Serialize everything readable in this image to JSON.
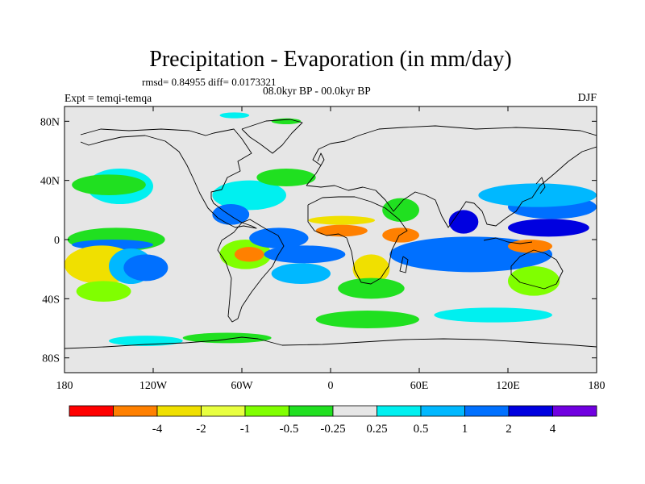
{
  "chart_data": {
    "type": "heatmap",
    "title": "Precipitation - Evaporation (in mm/day)",
    "stats": "rmsd= 0.84955 diff= 0.0173321",
    "period": "08.0kyr BP - 00.0kyr BP",
    "experiment": "Expt = temqi-temqa",
    "season": "DJF",
    "xlim": [
      -180,
      180
    ],
    "ylim": [
      -90,
      90
    ],
    "x_ticks": [
      {
        "value": -180,
        "label": "180"
      },
      {
        "value": -120,
        "label": "120W"
      },
      {
        "value": -60,
        "label": "60W"
      },
      {
        "value": 0,
        "label": "0"
      },
      {
        "value": 60,
        "label": "60E"
      },
      {
        "value": 120,
        "label": "120E"
      },
      {
        "value": 180,
        "label": "180"
      }
    ],
    "y_ticks": [
      {
        "value": 80,
        "label": "80N"
      },
      {
        "value": 40,
        "label": "40N"
      },
      {
        "value": 0,
        "label": "0"
      },
      {
        "value": -40,
        "label": "40S"
      },
      {
        "value": -80,
        "label": "80S"
      }
    ],
    "colorbar": {
      "colors": [
        "#ff0000",
        "#ff8000",
        "#f0e000",
        "#e8ff40",
        "#80ff00",
        "#20e020",
        "#e6e6e6",
        "#00f0f0",
        "#00b8ff",
        "#0070ff",
        "#0000e0",
        "#7000e0"
      ],
      "boundaries": [
        "",
        "-4",
        "-2",
        "-1",
        "-0.5",
        "-0.25",
        "0.25",
        "0.5",
        "1",
        "2",
        "4",
        ""
      ]
    },
    "regions": [
      {
        "name": "e-pacific-yellow",
        "lon": [
          -168,
          -120
        ],
        "lat": [
          -4,
          4
        ],
        "color": "#f0e000"
      },
      {
        "name": "e-pacific-green",
        "lon": [
          -178,
          -112
        ],
        "lat": [
          -8,
          8
        ],
        "color": "#20e020"
      },
      {
        "name": "e-pacific-blue",
        "lon": [
          -175,
          -120
        ],
        "lat": [
          -7,
          0
        ],
        "color": "#0070ff"
      },
      {
        "name": "s-pacific-red",
        "lon": [
          -178,
          -150
        ],
        "lat": [
          -20,
          -10
        ],
        "color": "#ff0000"
      },
      {
        "name": "s-pacific-orange",
        "lon": [
          -180,
          -140
        ],
        "lat": [
          -24,
          -8
        ],
        "color": "#ff8000"
      },
      {
        "name": "s-pacific-yellow",
        "lon": [
          -180,
          -130
        ],
        "lat": [
          -30,
          -4
        ],
        "color": "#f0e000"
      },
      {
        "name": "s-pacific-cyan",
        "lon": [
          -150,
          -120
        ],
        "lat": [
          -30,
          -6
        ],
        "color": "#00b8ff"
      },
      {
        "name": "spcz-blue",
        "lon": [
          -140,
          -110
        ],
        "lat": [
          -28,
          -10
        ],
        "color": "#0070ff"
      },
      {
        "name": "spcz-lightgreen",
        "lon": [
          -172,
          -135
        ],
        "lat": [
          -42,
          -28
        ],
        "color": "#80ff00"
      },
      {
        "name": "n-pacific-cyan",
        "lon": [
          -165,
          -120
        ],
        "lat": [
          24,
          48
        ],
        "color": "#00f0f0"
      },
      {
        "name": "n-pacific-green",
        "lon": [
          -175,
          -125
        ],
        "lat": [
          30,
          44
        ],
        "color": "#20e020"
      },
      {
        "name": "n-atlantic-cyan",
        "lon": [
          -80,
          -30
        ],
        "lat": [
          20,
          40
        ],
        "color": "#00f0f0"
      },
      {
        "name": "gulf-blue",
        "lon": [
          -80,
          -55
        ],
        "lat": [
          10,
          24
        ],
        "color": "#0070ff"
      },
      {
        "name": "n-atlantic-green",
        "lon": [
          -50,
          -10
        ],
        "lat": [
          36,
          48
        ],
        "color": "#20e020"
      },
      {
        "name": "amazon-lightgreen",
        "lon": [
          -75,
          -40
        ],
        "lat": [
          -20,
          0
        ],
        "color": "#80ff00"
      },
      {
        "name": "amazon-orange",
        "lon": [
          -65,
          -45
        ],
        "lat": [
          -15,
          -5
        ],
        "color": "#ff8000"
      },
      {
        "name": "atl-itcz-navy",
        "lon": [
          -52,
          -20
        ],
        "lat": [
          -2,
          6
        ],
        "color": "#0000e0"
      },
      {
        "name": "atl-itcz-blue",
        "lon": [
          -55,
          -15
        ],
        "lat": [
          -6,
          8
        ],
        "color": "#0070ff"
      },
      {
        "name": "s-atlantic-blue",
        "lon": [
          -45,
          10
        ],
        "lat": [
          -16,
          -4
        ],
        "color": "#0070ff"
      },
      {
        "name": "s-atlantic-cyan",
        "lon": [
          -40,
          0
        ],
        "lat": [
          -30,
          -16
        ],
        "color": "#00b8ff"
      },
      {
        "name": "sahel-orange",
        "lon": [
          -10,
          25
        ],
        "lat": [
          2,
          10
        ],
        "color": "#ff8000"
      },
      {
        "name": "sahel-yellow",
        "lon": [
          -15,
          30
        ],
        "lat": [
          10,
          16
        ],
        "color": "#f0e000"
      },
      {
        "name": "s-africa-yellow",
        "lon": [
          15,
          40
        ],
        "lat": [
          -30,
          -10
        ],
        "color": "#f0e000"
      },
      {
        "name": "s-africa-green",
        "lon": [
          5,
          50
        ],
        "lat": [
          -40,
          -26
        ],
        "color": "#20e020"
      },
      {
        "name": "arabia-green",
        "lon": [
          35,
          60
        ],
        "lat": [
          12,
          28
        ],
        "color": "#20e020"
      },
      {
        "name": "e-africa-orange",
        "lon": [
          35,
          60
        ],
        "lat": [
          -2,
          8
        ],
        "color": "#ff8000"
      },
      {
        "name": "indian-navy",
        "lon": [
          45,
          140
        ],
        "lat": [
          -12,
          -4
        ],
        "color": "#0000e0"
      },
      {
        "name": "indian-blue",
        "lon": [
          40,
          150
        ],
        "lat": [
          -22,
          2
        ],
        "color": "#0070ff"
      },
      {
        "name": "bay-navy",
        "lon": [
          80,
          100
        ],
        "lat": [
          4,
          20
        ],
        "color": "#0000e0"
      },
      {
        "name": "w-pacific-navy",
        "lon": [
          120,
          175
        ],
        "lat": [
          2,
          14
        ],
        "color": "#0000e0"
      },
      {
        "name": "w-pacific-blue",
        "lon": [
          120,
          180
        ],
        "lat": [
          14,
          30
        ],
        "color": "#0070ff"
      },
      {
        "name": "w-pacific-cyan",
        "lon": [
          100,
          180
        ],
        "lat": [
          22,
          38
        ],
        "color": "#00b8ff"
      },
      {
        "name": "maritime-red",
        "lon": [
          130,
          142
        ],
        "lat": [
          -6,
          -1
        ],
        "color": "#ff0000"
      },
      {
        "name": "maritime-orange",
        "lon": [
          120,
          150
        ],
        "lat": [
          -9,
          0
        ],
        "color": "#ff8000"
      },
      {
        "name": "australia-lightgreen",
        "lon": [
          120,
          155
        ],
        "lat": [
          -38,
          -18
        ],
        "color": "#80ff00"
      },
      {
        "name": "southern-ocean-green",
        "lon": [
          -10,
          60
        ],
        "lat": [
          -60,
          -48
        ],
        "color": "#20e020"
      },
      {
        "name": "southern-ocean-cyan",
        "lon": [
          70,
          150
        ],
        "lat": [
          -56,
          -46
        ],
        "color": "#00f0f0"
      },
      {
        "name": "antarctic-cyan",
        "lon": [
          -150,
          -100
        ],
        "lat": [
          -72,
          -65
        ],
        "color": "#00f0f0"
      },
      {
        "name": "antarctic-green",
        "lon": [
          -100,
          -40
        ],
        "lat": [
          -70,
          -63
        ],
        "color": "#20e020"
      },
      {
        "name": "arctic-cyan",
        "lon": [
          -75,
          -55
        ],
        "lat": [
          82,
          86
        ],
        "color": "#00f0f0"
      },
      {
        "name": "arctic-green",
        "lon": [
          -40,
          -20
        ],
        "lat": [
          78,
          82
        ],
        "color": "#20e020"
      }
    ]
  }
}
